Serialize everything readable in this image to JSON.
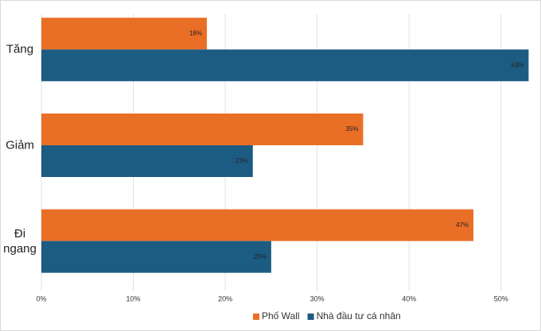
{
  "chart_data": {
    "type": "bar",
    "orientation": "horizontal",
    "categories": [
      "Tăng",
      "Giảm",
      "Đi ngang"
    ],
    "series": [
      {
        "name": "Phố Wall",
        "color": "#ea6f26",
        "values": [
          18,
          35,
          47
        ],
        "value_labels": [
          "18%",
          "35%",
          "47%"
        ]
      },
      {
        "name": "Nhà đầu tư cá nhân",
        "color": "#1d5c82",
        "values": [
          53,
          23,
          25
        ],
        "value_labels": [
          "53%",
          "23%",
          "25%"
        ]
      }
    ],
    "xlim": [
      0,
      54
    ],
    "xticks": [
      {
        "value": 0,
        "label": "0%"
      },
      {
        "value": 10,
        "label": "10%"
      },
      {
        "value": 20,
        "label": "20%"
      },
      {
        "value": 30,
        "label": "30%"
      },
      {
        "value": 40,
        "label": "40%"
      },
      {
        "value": 50,
        "label": "50%"
      }
    ],
    "grid": true,
    "legend": "bottom"
  }
}
